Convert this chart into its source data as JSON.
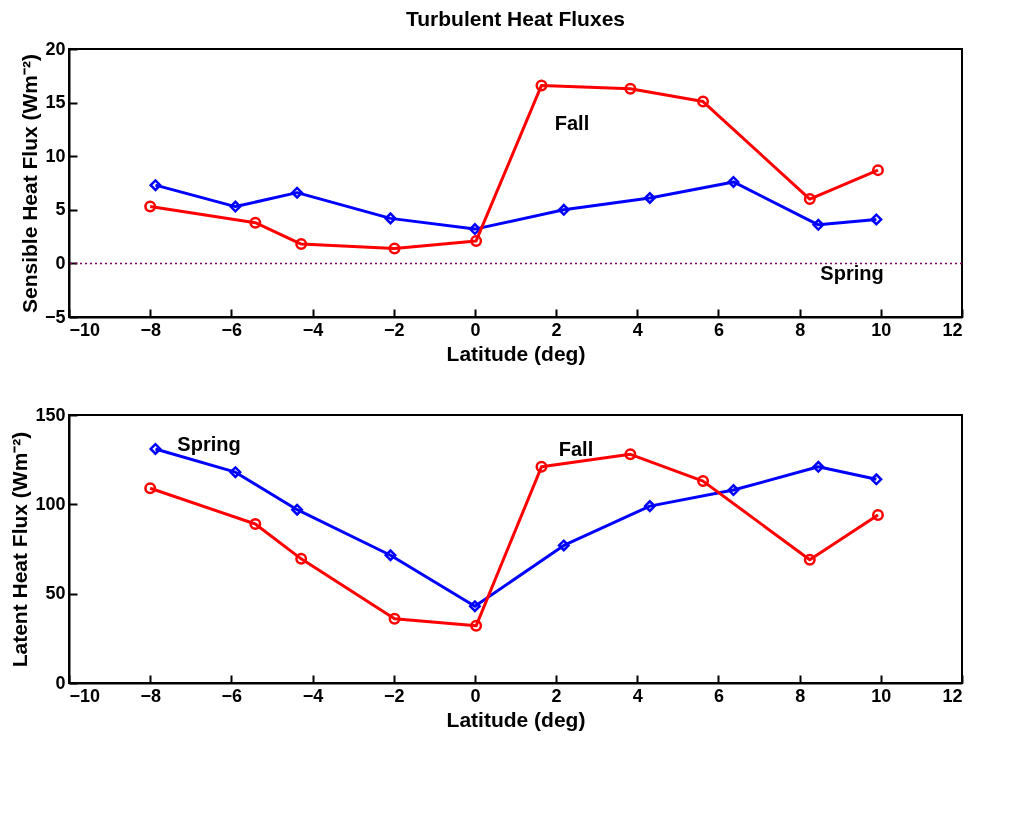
{
  "chart_data": [
    {
      "type": "line",
      "title": "Turbulent Heat Fluxes",
      "xlabel": "Latitude (deg)",
      "ylabel": "Sensible Heat Flux (Wm⁻²)",
      "xlim": [
        -10,
        12
      ],
      "xticks": [
        -10,
        -8,
        -6,
        -4,
        -2,
        0,
        2,
        4,
        6,
        8,
        10,
        12
      ],
      "ylim": [
        -5,
        20
      ],
      "yticks": [
        -5,
        0,
        5,
        10,
        15,
        20
      ],
      "grid": false,
      "series": [
        {
          "color": "#0000ff",
          "marker": "diamond",
          "x": [
            -7.87,
            -5.9,
            -4.38,
            -2.08,
            0,
            2.19,
            4.31,
            6.37,
            8.46,
            9.89
          ],
          "values": [
            7.3,
            5.3,
            6.6,
            4.2,
            3.2,
            5.0,
            6.1,
            7.6,
            3.6,
            4.1
          ]
        },
        {
          "color": "#ff0000",
          "marker": "circle",
          "x": [
            -8.0,
            -5.41,
            -4.28,
            -1.98,
            0.03,
            1.64,
            3.83,
            5.62,
            8.25,
            9.93
          ],
          "values": [
            5.3,
            3.8,
            1.8,
            1.4,
            2.1,
            16.6,
            16.3,
            15.1,
            6.0,
            8.7
          ]
        }
      ],
      "ref_lines": [
        {
          "axis": "y",
          "value": 0,
          "color": "#800060",
          "line_style": "dotted"
        }
      ],
      "annotations": [
        "Fall",
        "Spring"
      ]
    },
    {
      "type": "line",
      "xlabel": "Latitude (deg)",
      "ylabel": "Latent Heat Flux (Wm⁻²)",
      "xlim": [
        -10,
        12
      ],
      "xticks": [
        -10,
        -8,
        -6,
        -4,
        -2,
        0,
        2,
        4,
        6,
        8,
        10,
        12
      ],
      "ylim": [
        0,
        150
      ],
      "yticks": [
        0,
        50,
        100,
        150
      ],
      "grid": false,
      "series": [
        {
          "color": "#0000ff",
          "marker": "diamond",
          "x": [
            -7.87,
            -5.9,
            -4.38,
            -2.08,
            0,
            2.19,
            4.31,
            6.37,
            8.46,
            9.89
          ],
          "values": [
            131,
            118,
            97,
            71.5,
            43,
            77,
            99,
            108,
            121,
            114
          ]
        },
        {
          "color": "#ff0000",
          "marker": "circle",
          "x": [
            -8.0,
            -5.41,
            -4.28,
            -1.98,
            0.03,
            1.64,
            3.83,
            5.62,
            8.25,
            9.93
          ],
          "values": [
            109,
            89,
            69.5,
            36,
            32,
            121,
            128,
            113,
            69,
            94
          ]
        }
      ],
      "annotations": [
        "Spring",
        "Fall"
      ]
    }
  ]
}
